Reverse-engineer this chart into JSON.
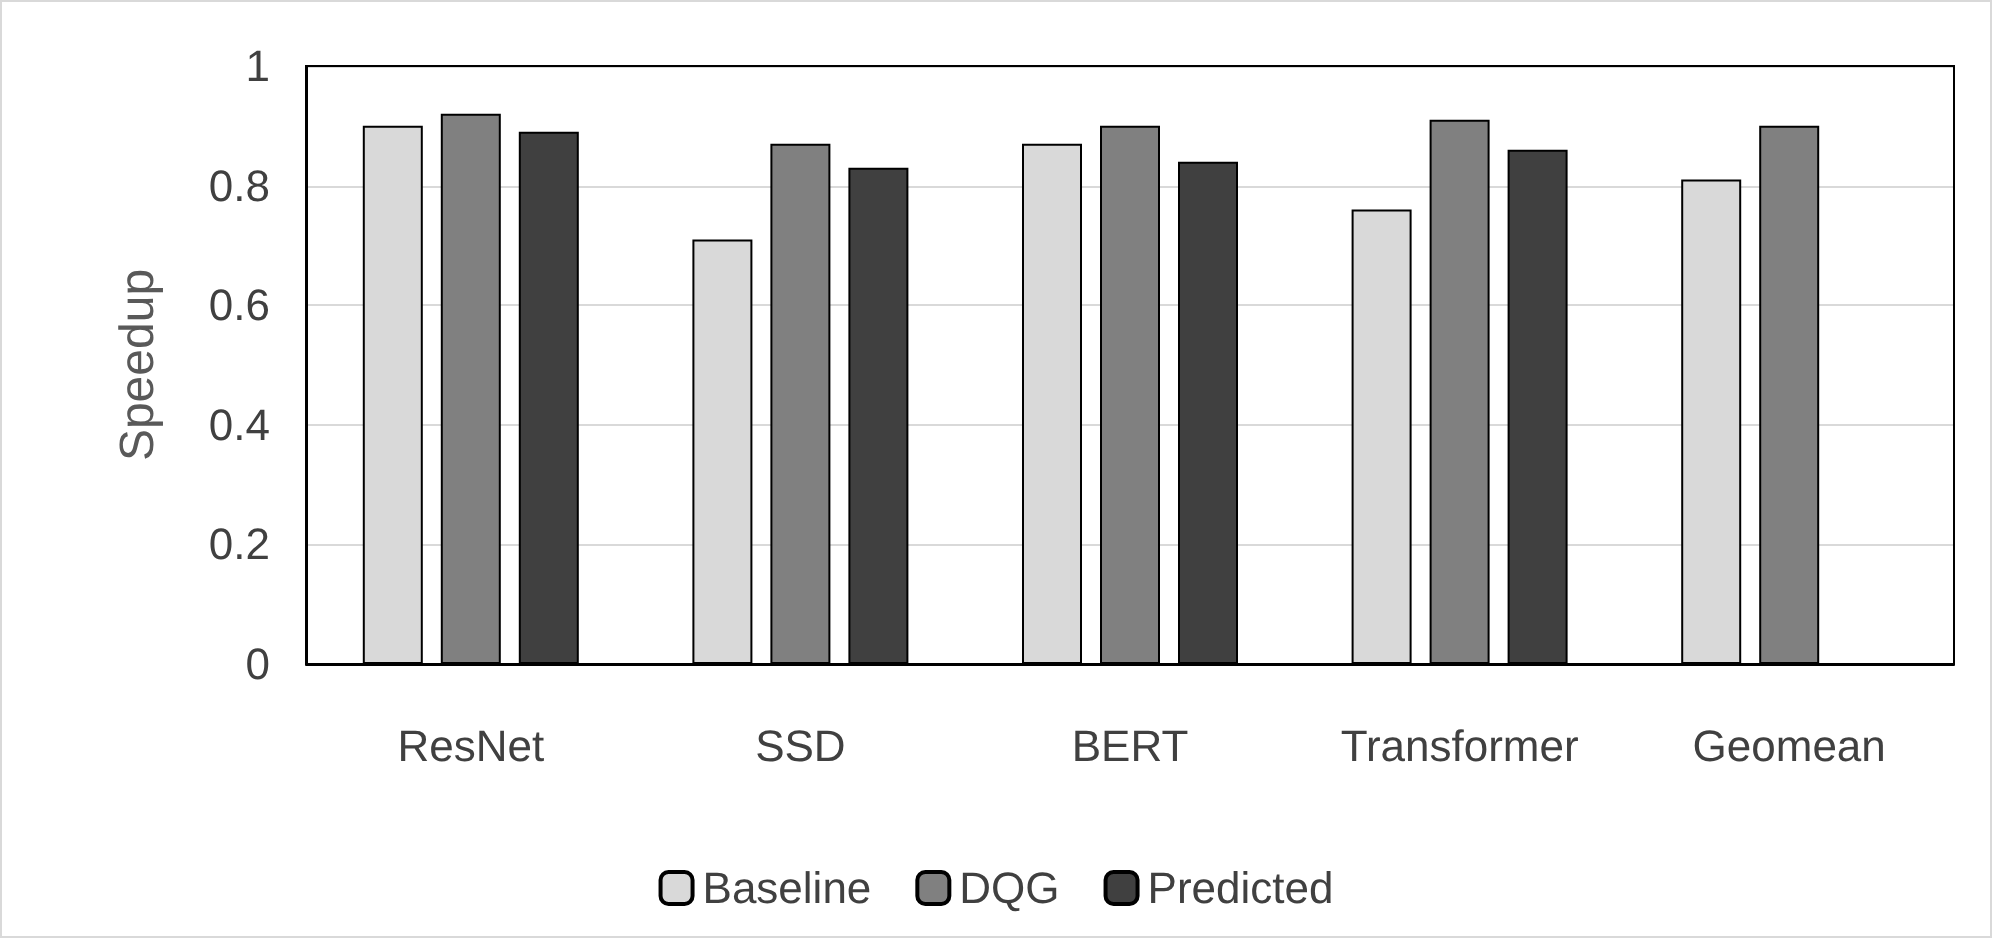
{
  "chart_data": {
    "type": "bar",
    "ylabel": "Speedup",
    "categories": [
      "ResNet",
      "SSD",
      "BERT",
      "Transformer",
      "Geomean"
    ],
    "series": [
      {
        "name": "Baseline",
        "color": "#d9d9d9",
        "values": [
          0.9,
          0.71,
          0.87,
          0.76,
          0.81
        ]
      },
      {
        "name": "DQG",
        "color": "#808080",
        "values": [
          0.92,
          0.87,
          0.9,
          0.91,
          0.9
        ]
      },
      {
        "name": "Predicted",
        "color": "#404040",
        "values": [
          0.89,
          0.83,
          0.84,
          0.86,
          null
        ]
      }
    ],
    "ylim": [
      0,
      1
    ],
    "yticks": [
      0,
      0.2,
      0.4,
      0.6,
      0.8,
      1
    ],
    "grid": "y",
    "legend": "bottom"
  }
}
